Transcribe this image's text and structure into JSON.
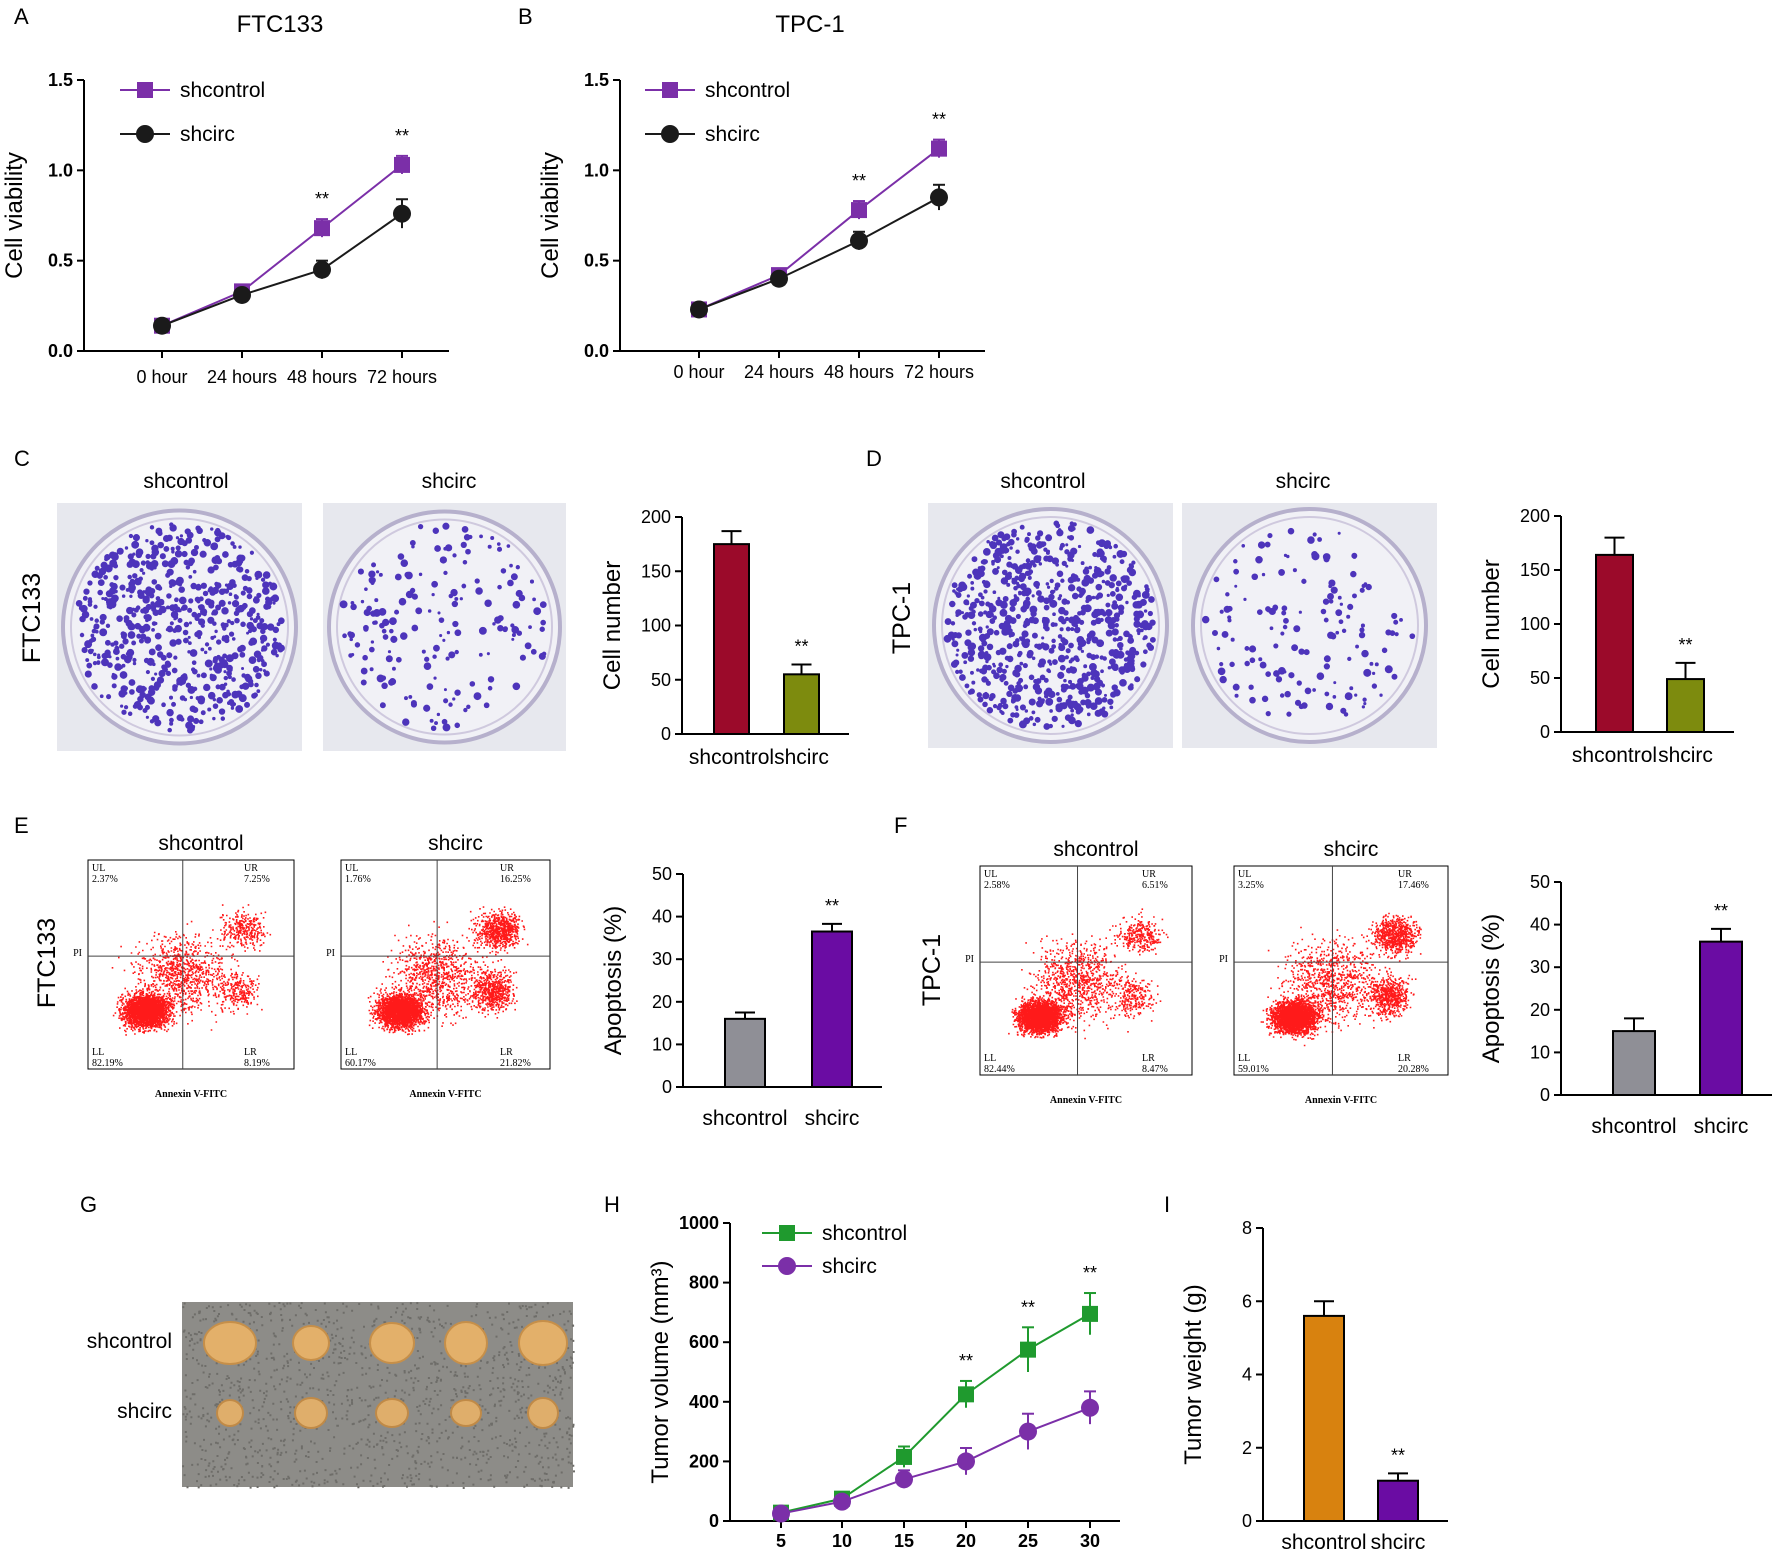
{
  "chart_data": [
    {
      "panel": "A",
      "type": "line",
      "title": "FTC133",
      "categories": [
        "0 hour",
        "24 hours",
        "48 hours",
        "72 hours"
      ],
      "ylabel": "Cell viability",
      "ylim": [
        0,
        1.5
      ],
      "yticks": [
        "0.0",
        "0.5",
        "1.0",
        "1.5"
      ],
      "series": [
        {
          "name": "shcontrol",
          "values": [
            0.14,
            0.33,
            0.68,
            1.03
          ],
          "errors": [
            0.02,
            0.02,
            0.05,
            0.05
          ],
          "color": "#7b2fa8",
          "marker": "square"
        },
        {
          "name": "shcirc",
          "values": [
            0.14,
            0.31,
            0.45,
            0.76
          ],
          "errors": [
            0.02,
            0.02,
            0.05,
            0.08
          ],
          "color": "#1a1a1a",
          "marker": "circle"
        }
      ],
      "significance": [
        {
          "index": 2,
          "label": "**"
        },
        {
          "index": 3,
          "label": "**"
        }
      ]
    },
    {
      "panel": "B",
      "type": "line",
      "title": "TPC-1",
      "categories": [
        "0 hour",
        "24 hours",
        "48 hours",
        "72 hours"
      ],
      "ylabel": "Cell viability",
      "ylim": [
        0,
        1.5
      ],
      "yticks": [
        "0.0",
        "0.5",
        "1.0",
        "1.5"
      ],
      "series": [
        {
          "name": "shcontrol",
          "values": [
            0.23,
            0.42,
            0.78,
            1.12
          ],
          "errors": [
            0.02,
            0.02,
            0.05,
            0.05
          ],
          "color": "#7b2fa8",
          "marker": "square"
        },
        {
          "name": "shcirc",
          "values": [
            0.23,
            0.4,
            0.61,
            0.85
          ],
          "errors": [
            0.02,
            0.02,
            0.05,
            0.07
          ],
          "color": "#1a1a1a",
          "marker": "circle"
        }
      ],
      "significance": [
        {
          "index": 2,
          "label": "**"
        },
        {
          "index": 3,
          "label": "**"
        }
      ]
    },
    {
      "panel": "C",
      "type": "bar",
      "row_label": "FTC133",
      "image_labels": [
        "shcontrol",
        "shcirc"
      ],
      "categories": [
        "shcontrol",
        "shcirc"
      ],
      "values": [
        175,
        55
      ],
      "errors": [
        12,
        9
      ],
      "colors": [
        "#9b0a2a",
        "#7d8b0e"
      ],
      "ylabel": "Cell number",
      "ylim": [
        0,
        200
      ],
      "yticks": [
        "0",
        "50",
        "100",
        "150",
        "200"
      ],
      "significance": [
        {
          "index": 1,
          "label": "**"
        }
      ]
    },
    {
      "panel": "D",
      "type": "bar",
      "row_label": "TPC-1",
      "image_labels": [
        "shcontrol",
        "shcirc"
      ],
      "categories": [
        "shcontrol",
        "shcirc"
      ],
      "values": [
        164,
        49
      ],
      "errors": [
        16,
        15
      ],
      "colors": [
        "#9b0a2a",
        "#7d8b0e"
      ],
      "ylabel": "Cell number",
      "ylim": [
        0,
        200
      ],
      "yticks": [
        "0",
        "50",
        "100",
        "150",
        "200"
      ],
      "significance": [
        {
          "index": 1,
          "label": "**"
        }
      ]
    },
    {
      "panel": "E",
      "type": "bar",
      "row_label": "FTC133",
      "flow": [
        {
          "title": "shcontrol",
          "UL": "2.37%",
          "UR": "7.25%",
          "LL": "82.19%",
          "LR": "8.19%",
          "xlabel": "Annexin V-FITC",
          "ylabel": "PI"
        },
        {
          "title": "shcirc",
          "UL": "1.76%",
          "UR": "16.25%",
          "LL": "60.17%",
          "LR": "21.82%",
          "xlabel": "Annexin V-FITC",
          "ylabel": "PI"
        }
      ],
      "categories": [
        "shcontrol",
        "shcirc"
      ],
      "values": [
        16,
        36.5
      ],
      "errors": [
        1.5,
        1.8
      ],
      "colors": [
        "#8f8f96",
        "#6a0ca3"
      ],
      "ylabel": "Apoptosis (%)",
      "ylim": [
        0,
        50
      ],
      "yticks": [
        "0",
        "10",
        "20",
        "30",
        "40",
        "50"
      ],
      "significance": [
        {
          "index": 1,
          "label": "**"
        }
      ]
    },
    {
      "panel": "F",
      "type": "bar",
      "row_label": "TPC-1",
      "flow": [
        {
          "title": "shcontrol",
          "UL": "2.58%",
          "UR": "6.51%",
          "LL": "82.44%",
          "LR": "8.47%",
          "xlabel": "Annexin V-FITC",
          "ylabel": "PI"
        },
        {
          "title": "shcirc",
          "UL": "3.25%",
          "UR": "17.46%",
          "LL": "59.01%",
          "LR": "20.28%",
          "xlabel": "Annexin V-FITC",
          "ylabel": "PI"
        }
      ],
      "categories": [
        "shcontrol",
        "shcirc"
      ],
      "values": [
        15,
        36
      ],
      "errors": [
        3,
        3
      ],
      "colors": [
        "#8f8f96",
        "#6a0ca3"
      ],
      "ylabel": "Apoptosis (%)",
      "ylim": [
        0,
        50
      ],
      "yticks": [
        "0",
        "10",
        "20",
        "30",
        "40",
        "50"
      ],
      "significance": [
        {
          "index": 1,
          "label": "**"
        }
      ]
    },
    {
      "panel": "G",
      "type": "image",
      "row_labels": [
        "shcontrol",
        "shcirc"
      ]
    },
    {
      "panel": "H",
      "type": "line",
      "x": [
        5,
        10,
        15,
        20,
        25,
        30
      ],
      "xticks": [
        "5",
        "10",
        "15",
        "20",
        "25",
        "30"
      ],
      "ylabel": "Tumor volume (mm³)",
      "ylim": [
        0,
        1000
      ],
      "yticks": [
        "0",
        "200",
        "400",
        "600",
        "800",
        "1000"
      ],
      "series": [
        {
          "name": "shcontrol",
          "values": [
            28,
            75,
            215,
            425,
            575,
            695
          ],
          "errors": [
            8,
            10,
            35,
            45,
            75,
            70
          ],
          "color": "#1f9a2e",
          "marker": "square"
        },
        {
          "name": "shcirc",
          "values": [
            25,
            65,
            140,
            200,
            300,
            380
          ],
          "errors": [
            8,
            10,
            30,
            45,
            60,
            55
          ],
          "color": "#7b2fa8",
          "marker": "circle"
        }
      ],
      "significance": [
        {
          "index": 3,
          "label": "**"
        },
        {
          "index": 4,
          "label": "**"
        },
        {
          "index": 5,
          "label": "**"
        }
      ]
    },
    {
      "panel": "I",
      "type": "bar",
      "categories": [
        "shcontrol",
        "shcirc"
      ],
      "values": [
        5.6,
        1.1
      ],
      "errors": [
        0.4,
        0.2
      ],
      "colors": [
        "#d8820f",
        "#6a0ca3"
      ],
      "ylabel": "Tumor weight (g)",
      "ylim": [
        0,
        8
      ],
      "yticks": [
        "0",
        "2",
        "4",
        "6",
        "8"
      ],
      "significance": [
        {
          "index": 1,
          "label": "**"
        }
      ]
    }
  ]
}
